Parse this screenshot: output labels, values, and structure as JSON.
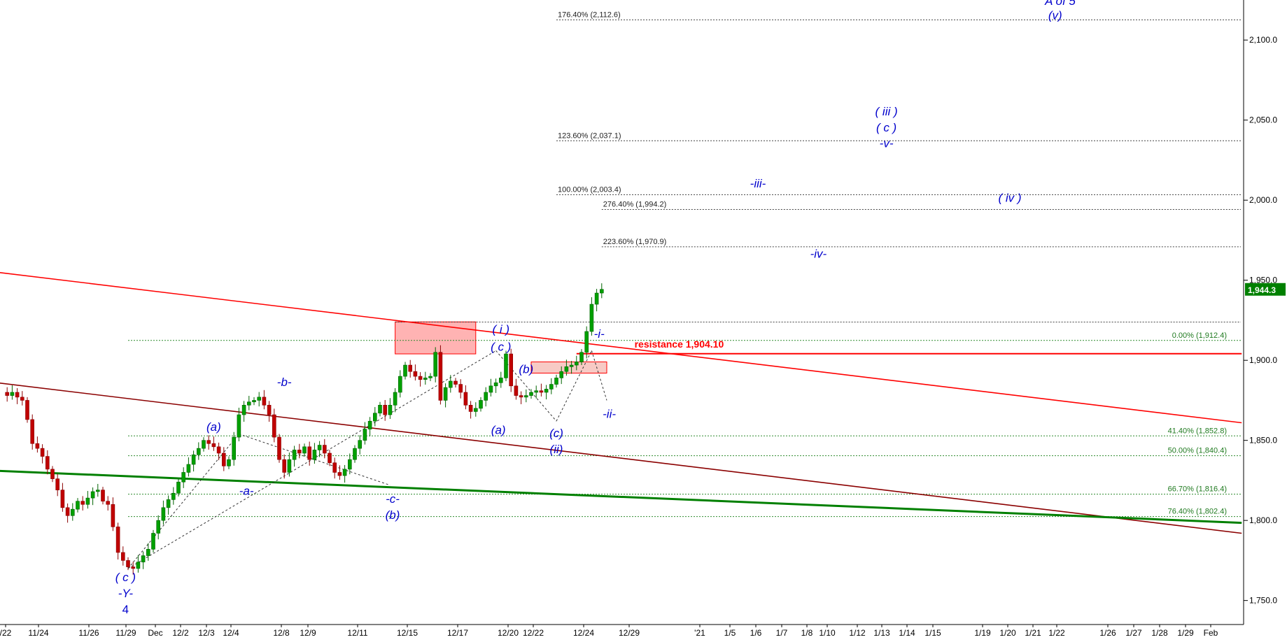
{
  "chart_data": {
    "type": "candlestick",
    "ylim": [
      1735,
      2125
    ],
    "y_ticks": [
      1750,
      1800,
      1850,
      1900,
      1950,
      2000,
      2050,
      2100
    ],
    "y_tick_labels": [
      "1,750.0",
      "1,800.0",
      "1,850.0",
      "1,900.0",
      "1,950.0",
      "2,000.0",
      "2,050.0",
      "2,100.0"
    ],
    "last_price": 1944.3,
    "last_price_label": "1,944.3",
    "x_labels": [
      "/22",
      "11/24",
      "11/26",
      "11/29",
      "Dec",
      "12/2",
      "12/3",
      "12/4",
      "12/8",
      "12/9",
      "12/11",
      "12/15",
      "12/17",
      "12/20",
      "12/22",
      "12/24",
      "12/29",
      "'21",
      "1/5",
      "1/6",
      "1/7",
      "1/8",
      "1/10",
      "1/12",
      "1/13",
      "1/14",
      "1/15",
      "1/19",
      "1/20",
      "1/21",
      "1/22",
      "1/26",
      "1/27",
      "1/28",
      "1/29",
      "Feb"
    ],
    "price_path": [
      [
        0,
        1880
      ],
      [
        1,
        1878
      ],
      [
        2,
        1880
      ],
      [
        3,
        1877
      ],
      [
        4,
        1875
      ],
      [
        5,
        1863
      ],
      [
        6,
        1848
      ],
      [
        7,
        1845
      ],
      [
        8,
        1840
      ],
      [
        9,
        1832
      ],
      [
        10,
        1826
      ],
      [
        11,
        1819
      ],
      [
        12,
        1808
      ],
      [
        13,
        1803
      ],
      [
        14,
        1807
      ],
      [
        15,
        1812
      ],
      [
        16,
        1810
      ],
      [
        17,
        1814
      ],
      [
        18,
        1818
      ],
      [
        19,
        1819
      ],
      [
        20,
        1812
      ],
      [
        21,
        1810
      ],
      [
        22,
        1796
      ],
      [
        23,
        1780
      ],
      [
        24,
        1775
      ],
      [
        25,
        1771
      ],
      [
        26,
        1770
      ],
      [
        27,
        1774
      ],
      [
        28,
        1778
      ],
      [
        29,
        1782
      ],
      [
        30,
        1792
      ],
      [
        31,
        1800
      ],
      [
        32,
        1808
      ],
      [
        33,
        1813
      ],
      [
        34,
        1817
      ],
      [
        35,
        1824
      ],
      [
        36,
        1830
      ],
      [
        37,
        1835
      ],
      [
        38,
        1841
      ],
      [
        39,
        1845
      ],
      [
        40,
        1850
      ],
      [
        41,
        1848
      ],
      [
        42,
        1846
      ],
      [
        43,
        1842
      ],
      [
        44,
        1834
      ],
      [
        45,
        1838
      ],
      [
        46,
        1852
      ],
      [
        47,
        1866
      ],
      [
        48,
        1872
      ],
      [
        49,
        1874
      ],
      [
        50,
        1875
      ],
      [
        51,
        1877
      ],
      [
        52,
        1872
      ],
      [
        53,
        1866
      ],
      [
        54,
        1852
      ],
      [
        55,
        1838
      ],
      [
        56,
        1830
      ],
      [
        57,
        1838
      ],
      [
        58,
        1844
      ],
      [
        59,
        1842
      ],
      [
        60,
        1846
      ],
      [
        61,
        1838
      ],
      [
        62,
        1844
      ],
      [
        63,
        1847
      ],
      [
        64,
        1842
      ],
      [
        65,
        1836
      ],
      [
        66,
        1830
      ],
      [
        67,
        1828
      ],
      [
        68,
        1832
      ],
      [
        69,
        1838
      ],
      [
        70,
        1845
      ],
      [
        71,
        1850
      ],
      [
        72,
        1857
      ],
      [
        73,
        1862
      ],
      [
        74,
        1867
      ],
      [
        75,
        1872
      ],
      [
        76,
        1866
      ],
      [
        77,
        1872
      ],
      [
        78,
        1880
      ],
      [
        79,
        1890
      ],
      [
        80,
        1897
      ],
      [
        81,
        1893
      ],
      [
        82,
        1890
      ],
      [
        83,
        1888
      ],
      [
        84,
        1889
      ],
      [
        85,
        1890
      ],
      [
        86,
        1905
      ],
      [
        87,
        1875
      ],
      [
        88,
        1883
      ],
      [
        89,
        1887
      ],
      [
        90,
        1885
      ],
      [
        91,
        1880
      ],
      [
        92,
        1872
      ],
      [
        93,
        1868
      ],
      [
        94,
        1870
      ],
      [
        95,
        1875
      ],
      [
        96,
        1880
      ],
      [
        97,
        1884
      ],
      [
        98,
        1886
      ],
      [
        99,
        1889
      ],
      [
        100,
        1904
      ],
      [
        101,
        1884
      ],
      [
        102,
        1878
      ],
      [
        103,
        1877
      ],
      [
        104,
        1878
      ],
      [
        105,
        1880
      ],
      [
        106,
        1881
      ],
      [
        107,
        1880
      ],
      [
        108,
        1882
      ],
      [
        109,
        1885
      ],
      [
        110,
        1889
      ],
      [
        111,
        1893
      ],
      [
        112,
        1896
      ],
      [
        113,
        1897
      ],
      [
        114,
        1899
      ],
      [
        115,
        1905
      ],
      [
        116,
        1918
      ],
      [
        117,
        1935
      ],
      [
        118,
        1942
      ],
      [
        119,
        1944.3
      ]
    ],
    "trendlines": [
      {
        "name": "red-trendline",
        "color": "#ff0000",
        "points": [
          [
            -1,
            1955
          ],
          [
            246,
            1861
          ]
        ]
      },
      {
        "name": "dark-red-trendline",
        "color": "#8b0000",
        "points": [
          [
            -1,
            1886
          ],
          [
            246,
            1792
          ]
        ]
      },
      {
        "name": "green-trendline",
        "color": "#008000",
        "points": [
          [
            -1,
            1831
          ],
          [
            246,
            1798.5
          ]
        ]
      },
      {
        "name": "resistance-line",
        "color": "#ff0000",
        "points": [
          [
            114,
            1904.1
          ],
          [
            246,
            1904.1
          ]
        ]
      }
    ],
    "zones": [
      {
        "name": "resistance-zone-upper",
        "color": "#ff9999",
        "x0": 78,
        "x1": 94,
        "y0": 1904,
        "y1": 1924
      },
      {
        "name": "resistance-zone-lower",
        "color": "#f4b8b2",
        "x0": 105,
        "x1": 120,
        "y0": 1892,
        "y1": 1899
      }
    ],
    "fib_levels": [
      {
        "label": "176.40% (2,112.6)",
        "value": 2112.6,
        "x0": 110,
        "side": "left",
        "style": "black"
      },
      {
        "label": "123.60% (2,037.1)",
        "value": 2037.1,
        "x0": 110,
        "side": "left",
        "style": "black"
      },
      {
        "label": "100.00% (2,003.4)",
        "value": 2003.4,
        "x0": 110,
        "side": "left",
        "style": "black"
      },
      {
        "label": "276.40% (1,994.2)",
        "value": 1994.2,
        "x0": 119,
        "side": "left",
        "style": "black"
      },
      {
        "label": "223.60% (1,970.9)",
        "value": 1970.9,
        "x0": 119,
        "side": "left",
        "style": "black"
      },
      {
        "label": "",
        "value": 1923.9,
        "x0": 78,
        "side": "left",
        "style": "black"
      },
      {
        "label": "0.00% (1,912.4)",
        "value": 1912.4,
        "x0": 25,
        "side": "right",
        "style": "green"
      },
      {
        "label": "41.40% (1,852.8)",
        "value": 1852.8,
        "x0": 25,
        "side": "right",
        "style": "green"
      },
      {
        "label": "50.00% (1,840.4)",
        "value": 1840.4,
        "x0": 25,
        "side": "right",
        "style": "green"
      },
      {
        "label": "66.70% (1,816.4)",
        "value": 1816.4,
        "x0": 25,
        "side": "right",
        "style": "green"
      },
      {
        "label": "76.40% (1,802.4)",
        "value": 1802.4,
        "x0": 25,
        "side": "right",
        "style": "green"
      }
    ],
    "annotations": [
      {
        "text": "A of 5",
        "x": 210,
        "y": 2122,
        "color": "#0000cc",
        "italic": true
      },
      {
        "text": "(v)",
        "x": 209,
        "y": 2113,
        "color": "#0000cc",
        "italic": true
      },
      {
        "text": "( iii )",
        "x": 175.5,
        "y": 2053,
        "color": "#0000cc",
        "italic": true
      },
      {
        "text": "( c )",
        "x": 175.5,
        "y": 2043,
        "color": "#0000cc",
        "italic": true
      },
      {
        "text": "-v-",
        "x": 175.5,
        "y": 2033,
        "color": "#0000cc",
        "italic": true
      },
      {
        "text": "-iii-",
        "x": 150,
        "y": 2008,
        "color": "#0000cc",
        "italic": true
      },
      {
        "text": "( iv )",
        "x": 200,
        "y": 1999,
        "color": "#0000cc",
        "italic": true
      },
      {
        "text": "-iv-",
        "x": 162,
        "y": 1964,
        "color": "#0000cc",
        "italic": true
      },
      {
        "text": "( i )",
        "x": 99,
        "y": 1917,
        "color": "#0000cc",
        "italic": true
      },
      {
        "text": "( c )",
        "x": 99,
        "y": 1906,
        "color": "#0000cc",
        "italic": true
      },
      {
        "text": "-i-",
        "x": 118.5,
        "y": 1914,
        "color": "#0000cc",
        "italic": true
      },
      {
        "text": "(b)",
        "x": 104,
        "y": 1892,
        "color": "#0000cc",
        "italic": true
      },
      {
        "text": "-b-",
        "x": 56,
        "y": 1884,
        "color": "#0000cc",
        "italic": true
      },
      {
        "text": "(a)",
        "x": 42,
        "y": 1856,
        "color": "#0000cc",
        "italic": true
      },
      {
        "text": "(a)",
        "x": 98.5,
        "y": 1854,
        "color": "#0000cc",
        "italic": true
      },
      {
        "text": "(c)",
        "x": 110,
        "y": 1852,
        "color": "#0000cc",
        "italic": true
      },
      {
        "text": "(ii)",
        "x": 110,
        "y": 1842,
        "color": "#0000cc",
        "italic": true
      },
      {
        "text": "-ii-",
        "x": 120.5,
        "y": 1864,
        "color": "#0000cc",
        "italic": true
      },
      {
        "text": "-a-",
        "x": 48.5,
        "y": 1816,
        "color": "#0000cc",
        "italic": true
      },
      {
        "text": "-c-",
        "x": 77.5,
        "y": 1811,
        "color": "#0000cc",
        "italic": true
      },
      {
        "text": "(b)",
        "x": 77.5,
        "y": 1801,
        "color": "#0000cc",
        "italic": true
      },
      {
        "text": "( c )",
        "x": 24.5,
        "y": 1762,
        "color": "#0000cc",
        "italic": true
      },
      {
        "text": "-Y-",
        "x": 24.5,
        "y": 1752,
        "color": "#0000cc",
        "italic": true
      },
      {
        "text": "4",
        "x": 24.5,
        "y": 1742,
        "color": "#0000cc",
        "italic": false
      },
      {
        "text": "resistance 1,904.10",
        "x": 125.5,
        "y": 1908,
        "color": "#ff0000",
        "italic": false,
        "align": "start"
      }
    ],
    "dashed_wave_lines": [
      [
        [
          25,
          1770
        ],
        [
          47,
          1854
        ]
      ],
      [
        [
          47,
          1854
        ],
        [
          77,
          1822
        ]
      ],
      [
        [
          25,
          1770
        ],
        [
          98,
          1906
        ]
      ],
      [
        [
          98,
          1906
        ],
        [
          110,
          1862
        ]
      ],
      [
        [
          110,
          1862
        ],
        [
          117,
          1906
        ]
      ],
      [
        [
          117,
          1906
        ],
        [
          120,
          1875
        ]
      ]
    ]
  }
}
